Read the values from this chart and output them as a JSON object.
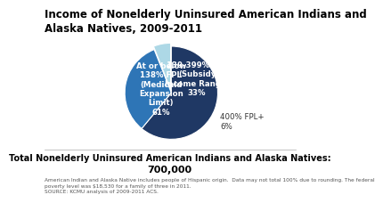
{
  "title": "Income of Nonelderly Uninsured American Indians and\nAlaska Natives, 2009-2011",
  "slices": [
    61,
    33,
    6
  ],
  "label_inside_0": "At or below\n138% FPL\n(Medicaid\nExpansion\nLimit)\n61%",
  "label_inside_1": "139-399% FPL\n(Subsidy\nIncome Range)\n33%",
  "label_outside_2": "400% FPL+\n6%",
  "colors": [
    "#1f3864",
    "#2e75b6",
    "#add8e6"
  ],
  "startangle": 90,
  "footer_bold": "Total Nonelderly Uninsured American Indians and Alaska Natives:",
  "footer_value": "700,000",
  "footnote_line1": "American Indian and Alaska Native includes people of Hispanic origin.  Data may not total 100% due to rounding. The federal",
  "footnote_line2": "poverty level was $18,530 for a family of three in 2011.",
  "footnote_line3": "SOURCE: KCMU analysis of 2009-2011 ACS.",
  "background_color": "#ffffff",
  "title_fontsize": 8.5,
  "label_fontsize": 6.2,
  "footer_fontsize": 7.0,
  "footnote_fontsize": 4.2,
  "wedge_explode": [
    0,
    0,
    0.07
  ]
}
